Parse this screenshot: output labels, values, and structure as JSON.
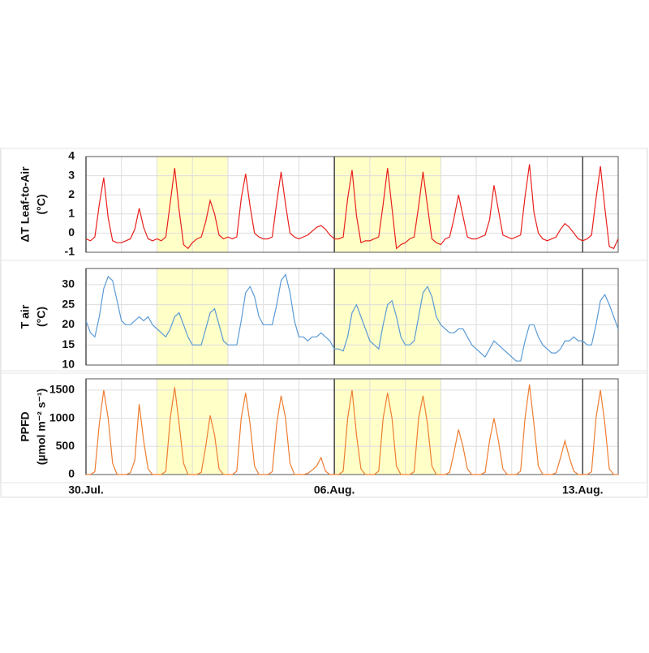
{
  "chart_data": [
    {
      "type": "line",
      "ylabel": [
        "ΔT Leaf-to-Air",
        "(°C)"
      ],
      "color": "#e8201c",
      "x": [
        0,
        3,
        6,
        9,
        12,
        15,
        18,
        21,
        24,
        27,
        30,
        33,
        36,
        39,
        42,
        45,
        48,
        51,
        54,
        57,
        60,
        63,
        66,
        69,
        72,
        75,
        78,
        81,
        84,
        87,
        90,
        93,
        96,
        99,
        102,
        105,
        108,
        111,
        114,
        117,
        120,
        123,
        126,
        129,
        132,
        135,
        138,
        141,
        144,
        147,
        150,
        153,
        156,
        159,
        162,
        165,
        168,
        171,
        174,
        177,
        180,
        183,
        186,
        189,
        192,
        195,
        198,
        201,
        204,
        207,
        210,
        213,
        216,
        219,
        222,
        225,
        228,
        231,
        234,
        237,
        240,
        243,
        246,
        249,
        252,
        255,
        258,
        261,
        264,
        267,
        270,
        273,
        276,
        279,
        282,
        285,
        288,
        291,
        294,
        297,
        300,
        303,
        306,
        309,
        312,
        315,
        318,
        321,
        324,
        327,
        330,
        333,
        336,
        339,
        342,
        345,
        348,
        351,
        354,
        357,
        360
      ],
      "values": [
        -0.3,
        -0.4,
        -0.2,
        1.5,
        2.9,
        0.8,
        -0.4,
        -0.5,
        -0.5,
        -0.4,
        -0.3,
        0.2,
        1.3,
        0.3,
        -0.3,
        -0.4,
        -0.3,
        -0.4,
        -0.2,
        1.6,
        3.4,
        1.2,
        -0.6,
        -0.8,
        -0.5,
        -0.3,
        -0.2,
        0.6,
        1.7,
        1.0,
        -0.1,
        -0.3,
        -0.2,
        -0.3,
        -0.2,
        1.8,
        3.1,
        1.4,
        0.0,
        -0.2,
        -0.3,
        -0.3,
        -0.2,
        1.6,
        3.2,
        1.5,
        0.0,
        -0.2,
        -0.3,
        -0.2,
        -0.1,
        0.1,
        0.3,
        0.4,
        0.2,
        -0.1,
        -0.3,
        -0.3,
        -0.2,
        1.8,
        3.3,
        0.9,
        -0.5,
        -0.4,
        -0.4,
        -0.3,
        -0.2,
        1.5,
        3.4,
        1.3,
        -0.8,
        -0.6,
        -0.5,
        -0.3,
        -0.2,
        1.4,
        3.2,
        1.4,
        -0.3,
        -0.5,
        -0.6,
        -0.3,
        -0.2,
        0.8,
        2.0,
        0.9,
        -0.2,
        -0.3,
        -0.3,
        -0.2,
        -0.1,
        0.7,
        2.5,
        1.2,
        -0.1,
        -0.2,
        -0.3,
        -0.2,
        -0.1,
        1.9,
        3.6,
        1.1,
        0.0,
        -0.3,
        -0.4,
        -0.3,
        -0.2,
        0.2,
        0.5,
        0.3,
        0.0,
        -0.3,
        -0.4,
        -0.3,
        -0.1,
        1.8,
        3.5,
        1.3,
        -0.7,
        -0.8,
        -0.3
      ],
      "xlim": [
        0,
        360
      ],
      "xticks": [
        0,
        168,
        336
      ],
      "x_minor_step": 24,
      "ylim": [
        -1,
        4
      ],
      "yticks": [
        -1,
        0,
        1,
        2,
        3,
        4
      ],
      "grid": true,
      "highlight": [
        [
          48,
          96
        ],
        [
          168,
          240
        ]
      ],
      "highlight_color": "#ffffc8"
    },
    {
      "type": "line",
      "ylabel": [
        "T air",
        "(°C)"
      ],
      "color": "#5b9bd5",
      "x": [
        0,
        3,
        6,
        9,
        12,
        15,
        18,
        21,
        24,
        27,
        30,
        33,
        36,
        39,
        42,
        45,
        48,
        51,
        54,
        57,
        60,
        63,
        66,
        69,
        72,
        75,
        78,
        81,
        84,
        87,
        90,
        93,
        96,
        99,
        102,
        105,
        108,
        111,
        114,
        117,
        120,
        123,
        126,
        129,
        132,
        135,
        138,
        141,
        144,
        147,
        150,
        153,
        156,
        159,
        162,
        165,
        168,
        171,
        174,
        177,
        180,
        183,
        186,
        189,
        192,
        195,
        198,
        201,
        204,
        207,
        210,
        213,
        216,
        219,
        222,
        225,
        228,
        231,
        234,
        237,
        240,
        243,
        246,
        249,
        252,
        255,
        258,
        261,
        264,
        267,
        270,
        273,
        276,
        279,
        282,
        285,
        288,
        291,
        294,
        297,
        300,
        303,
        306,
        309,
        312,
        315,
        318,
        321,
        324,
        327,
        330,
        333,
        336,
        339,
        342,
        345,
        348,
        351,
        354,
        357,
        360
      ],
      "values": [
        21,
        18,
        17,
        22,
        29,
        32,
        31,
        26,
        21,
        20,
        20,
        21,
        22,
        21,
        22,
        20,
        19,
        18,
        17,
        19,
        22,
        23,
        20,
        17,
        15,
        15,
        15,
        19,
        23,
        24,
        20,
        16,
        15,
        15,
        15,
        21,
        28,
        29.5,
        27,
        22,
        20,
        20,
        20,
        25,
        31,
        32.5,
        28,
        21,
        17,
        17,
        16,
        17,
        17,
        18,
        17,
        16,
        14,
        14,
        13.5,
        17,
        23,
        25,
        22,
        19,
        16,
        15,
        14,
        20,
        25,
        26,
        22,
        17,
        15,
        15,
        16,
        22,
        28,
        29.5,
        27,
        22,
        20,
        19,
        18,
        18,
        19,
        19,
        17,
        15,
        14,
        13,
        12,
        14,
        16,
        15,
        14,
        13,
        12,
        11,
        11,
        16,
        20,
        20,
        17,
        15,
        14,
        13,
        13,
        14,
        16,
        16,
        17,
        16,
        16,
        15,
        15,
        20,
        26,
        27.5,
        25,
        22,
        19
      ],
      "xlim": [
        0,
        360
      ],
      "xticks": [
        0,
        168,
        336
      ],
      "x_minor_step": 24,
      "ylim": [
        10,
        34
      ],
      "yticks": [
        10,
        15,
        20,
        25,
        30
      ],
      "grid": true,
      "highlight": [
        [
          48,
          96
        ],
        [
          168,
          240
        ]
      ],
      "highlight_color": "#ffffc8"
    },
    {
      "type": "line",
      "ylabel": [
        "PPFD",
        "(µmol m⁻² s⁻¹)"
      ],
      "color": "#ed7d31",
      "x": [
        0,
        3,
        6,
        9,
        12,
        15,
        18,
        21,
        24,
        27,
        30,
        33,
        36,
        39,
        42,
        45,
        48,
        51,
        54,
        57,
        60,
        63,
        66,
        69,
        72,
        75,
        78,
        81,
        84,
        87,
        90,
        93,
        96,
        99,
        102,
        105,
        108,
        111,
        114,
        117,
        120,
        123,
        126,
        129,
        132,
        135,
        138,
        141,
        144,
        147,
        150,
        153,
        156,
        159,
        162,
        165,
        168,
        171,
        174,
        177,
        180,
        183,
        186,
        189,
        192,
        195,
        198,
        201,
        204,
        207,
        210,
        213,
        216,
        219,
        222,
        225,
        228,
        231,
        234,
        237,
        240,
        243,
        246,
        249,
        252,
        255,
        258,
        261,
        264,
        267,
        270,
        273,
        276,
        279,
        282,
        285,
        288,
        291,
        294,
        297,
        300,
        303,
        306,
        309,
        312,
        315,
        318,
        321,
        324,
        327,
        330,
        333,
        336,
        339,
        342,
        345,
        348,
        351,
        354,
        357,
        360
      ],
      "values": [
        0,
        0,
        50,
        900,
        1500,
        1000,
        200,
        0,
        0,
        0,
        30,
        250,
        1250,
        600,
        100,
        0,
        0,
        0,
        60,
        1000,
        1550,
        900,
        200,
        0,
        0,
        0,
        40,
        500,
        1050,
        700,
        100,
        0,
        0,
        0,
        60,
        1000,
        1450,
        900,
        150,
        0,
        0,
        0,
        50,
        900,
        1400,
        1000,
        200,
        0,
        0,
        0,
        20,
        80,
        150,
        300,
        60,
        0,
        0,
        0,
        60,
        1000,
        1500,
        700,
        100,
        0,
        0,
        0,
        60,
        1000,
        1450,
        1000,
        150,
        0,
        0,
        0,
        50,
        1000,
        1400,
        900,
        150,
        0,
        0,
        0,
        40,
        400,
        800,
        500,
        100,
        0,
        0,
        0,
        40,
        600,
        1000,
        600,
        100,
        0,
        0,
        0,
        60,
        1000,
        1600,
        900,
        150,
        0,
        0,
        0,
        30,
        300,
        600,
        300,
        60,
        0,
        0,
        0,
        50,
        1000,
        1500,
        900,
        100,
        0,
        0
      ],
      "xlim": [
        0,
        360
      ],
      "xticks": [
        {
          "value": 0,
          "label": "30.Jul."
        },
        {
          "value": 168,
          "label": "06.Aug."
        },
        {
          "value": 336,
          "label": "13.Aug."
        }
      ],
      "x_minor_step": 24,
      "ylim": [
        0,
        1700
      ],
      "yticks": [
        0,
        500,
        1000,
        1500
      ],
      "grid": true,
      "highlight": [
        [
          48,
          96
        ],
        [
          168,
          240
        ]
      ],
      "highlight_color": "#ffffc8"
    }
  ]
}
